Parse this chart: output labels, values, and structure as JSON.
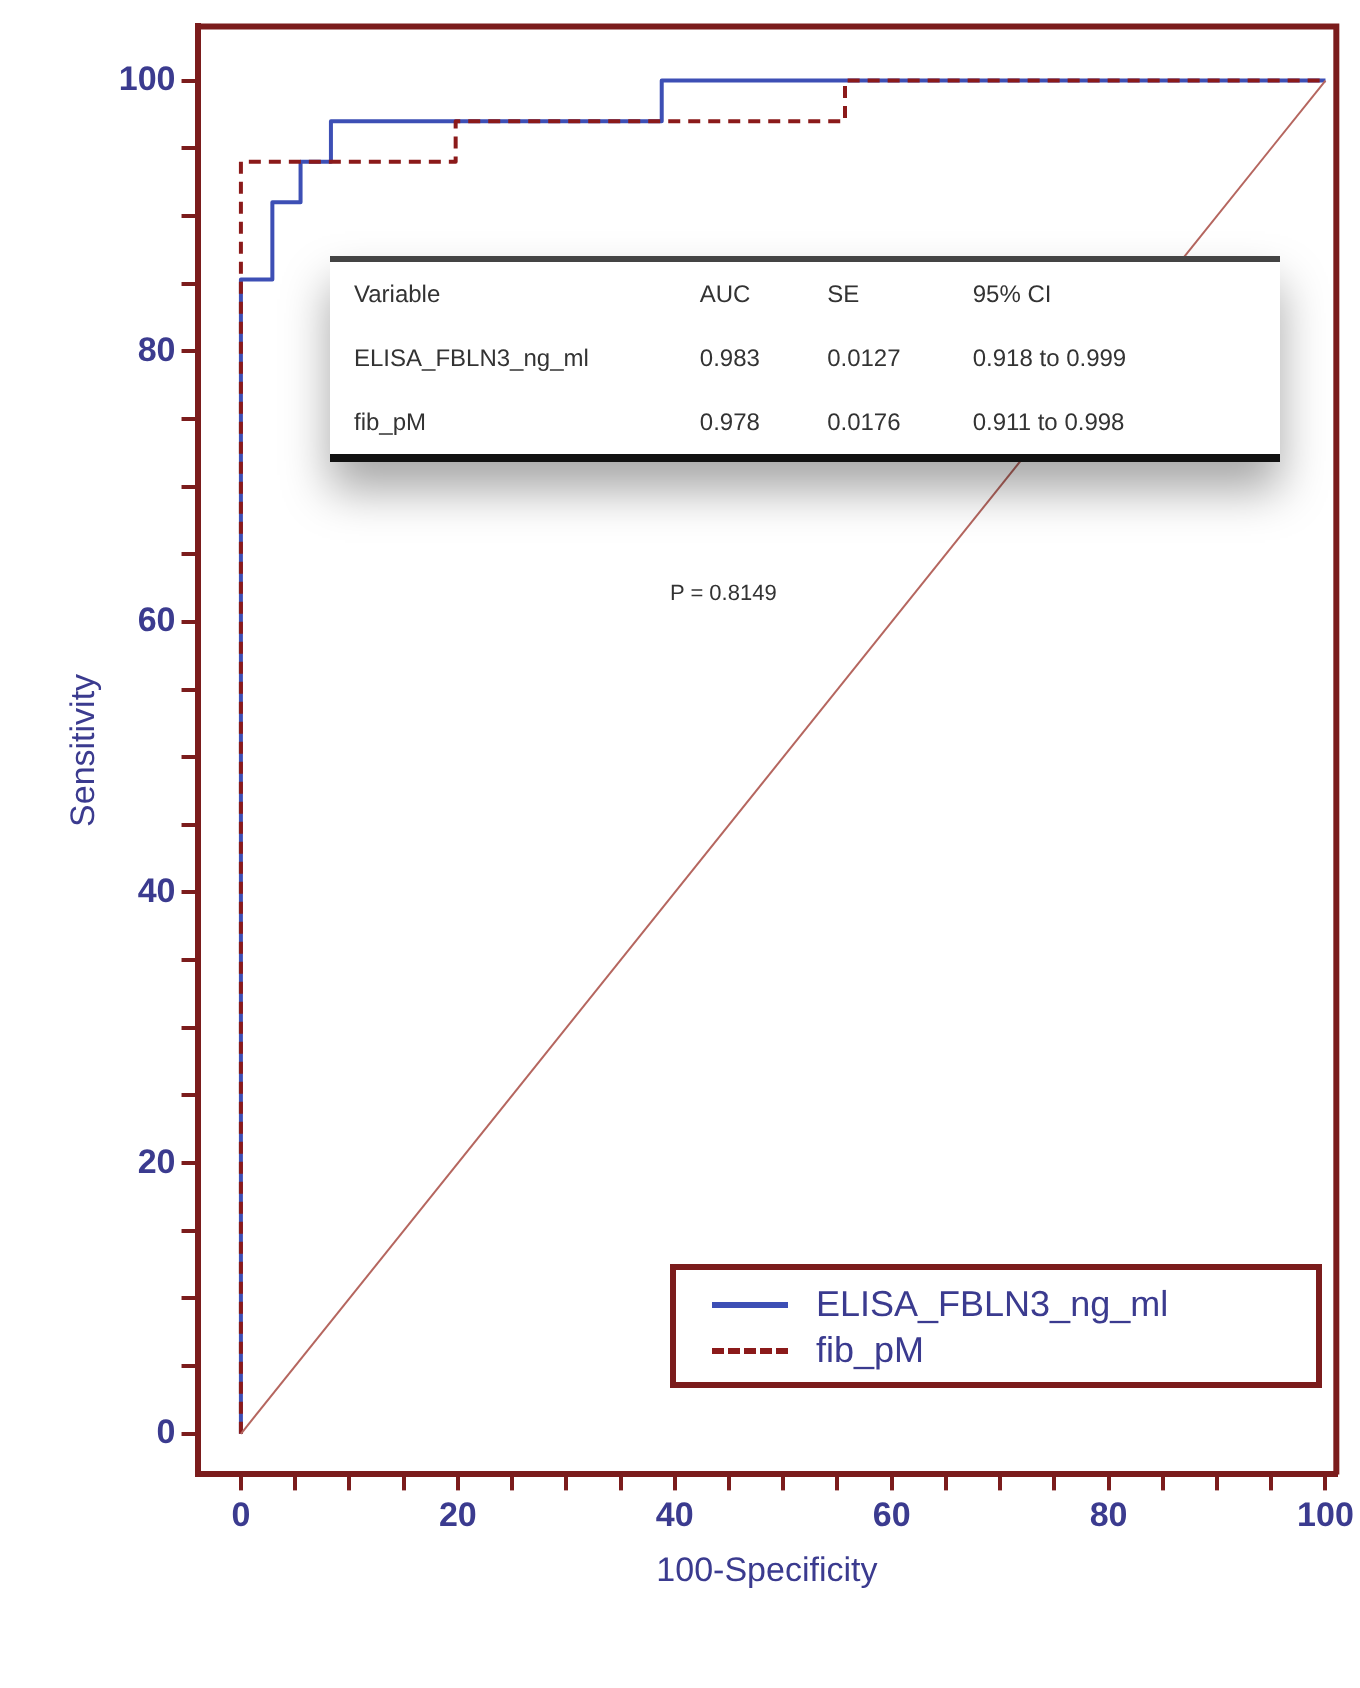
{
  "chart_data": {
    "type": "step",
    "xlabel": "100-Specificity",
    "ylabel": "Sensitivity",
    "xlim": [
      -4,
      101
    ],
    "ylim": [
      -3,
      104
    ],
    "xticks": [
      0,
      {
        "value": 5,
        "label": null
      },
      {
        "value": 10,
        "label": null
      },
      {
        "value": 15,
        "label": null
      },
      20,
      {
        "value": 25,
        "label": null
      },
      {
        "value": 30,
        "label": null
      },
      {
        "value": 35,
        "label": null
      },
      40,
      {
        "value": 45,
        "label": null
      },
      {
        "value": 50,
        "label": null
      },
      {
        "value": 55,
        "label": null
      },
      60,
      {
        "value": 65,
        "label": null
      },
      {
        "value": 70,
        "label": null
      },
      {
        "value": 75,
        "label": null
      },
      80,
      {
        "value": 85,
        "label": null
      },
      {
        "value": 90,
        "label": null
      },
      {
        "value": 95,
        "label": null
      },
      100
    ],
    "yticks": [
      0,
      {
        "value": 5,
        "label": null
      },
      {
        "value": 10,
        "label": null
      },
      {
        "value": 15,
        "label": null
      },
      20,
      {
        "value": 25,
        "label": null
      },
      {
        "value": 30,
        "label": null
      },
      {
        "value": 35,
        "label": null
      },
      40,
      {
        "value": 45,
        "label": null
      },
      {
        "value": 50,
        "label": null
      },
      {
        "value": 55,
        "label": null
      },
      60,
      {
        "value": 65,
        "label": null
      },
      {
        "value": 70,
        "label": null
      },
      {
        "value": 75,
        "label": null
      },
      80,
      {
        "value": 85,
        "label": null
      },
      {
        "value": 90,
        "label": null
      },
      {
        "value": 95,
        "label": null
      },
      100
    ],
    "grid": false,
    "legend": "bottom right",
    "marker": "none",
    "series": [
      {
        "name": "ELISA_FBLN3_ng_ml",
        "color": "#3d4fb5",
        "line_style": "solid",
        "x": [
          0,
          0,
          2.9,
          5.5,
          8.3,
          38.8,
          100
        ],
        "values": [
          0,
          85.3,
          91,
          94,
          97,
          100,
          100
        ]
      },
      {
        "name": "fib_pM",
        "color": "#8b1a1a",
        "line_style": "dashed",
        "x": [
          0,
          0,
          19.8,
          55.7,
          100
        ],
        "values": [
          0,
          94,
          97,
          100,
          100
        ]
      },
      {
        "color": "#b5665f",
        "type": "line",
        "line_style": "solid",
        "x": [
          0,
          100
        ],
        "values": [
          0,
          100
        ]
      }
    ],
    "annotations": [
      "Variable",
      "AUC",
      "SE",
      "95% CI",
      "ELISA_FBLN3_ng_ml",
      "0.983",
      "0.0127",
      "0.918 to 0.999",
      "fib_pM",
      "0.978",
      "0.0176",
      "0.911 to 0.998",
      "P = 0.8149"
    ]
  }
}
